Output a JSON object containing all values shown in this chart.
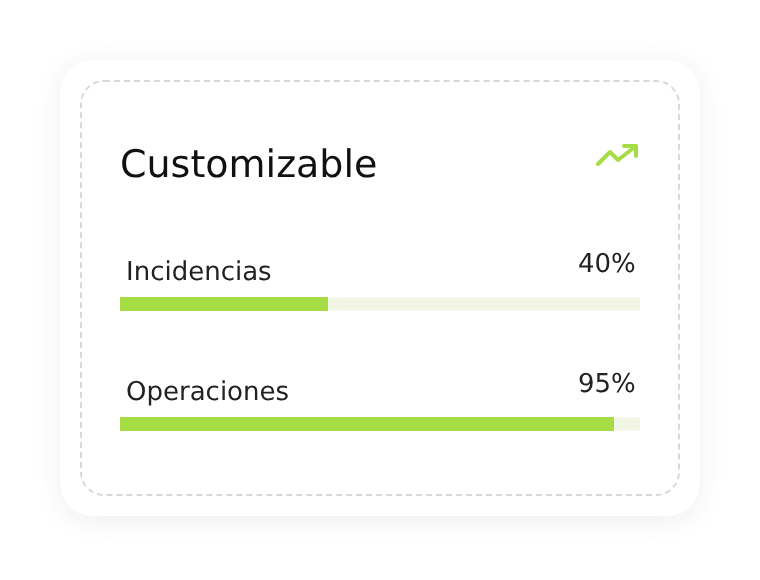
{
  "chart_data": {
    "type": "bar",
    "orientation": "horizontal",
    "title": "Customizable",
    "categories": [
      "Incidencias",
      "Operaciones"
    ],
    "values": [
      40,
      95
    ],
    "value_labels": [
      "40%",
      "95%"
    ],
    "color": "#a6dc45",
    "xlim": [
      0,
      100
    ]
  }
}
